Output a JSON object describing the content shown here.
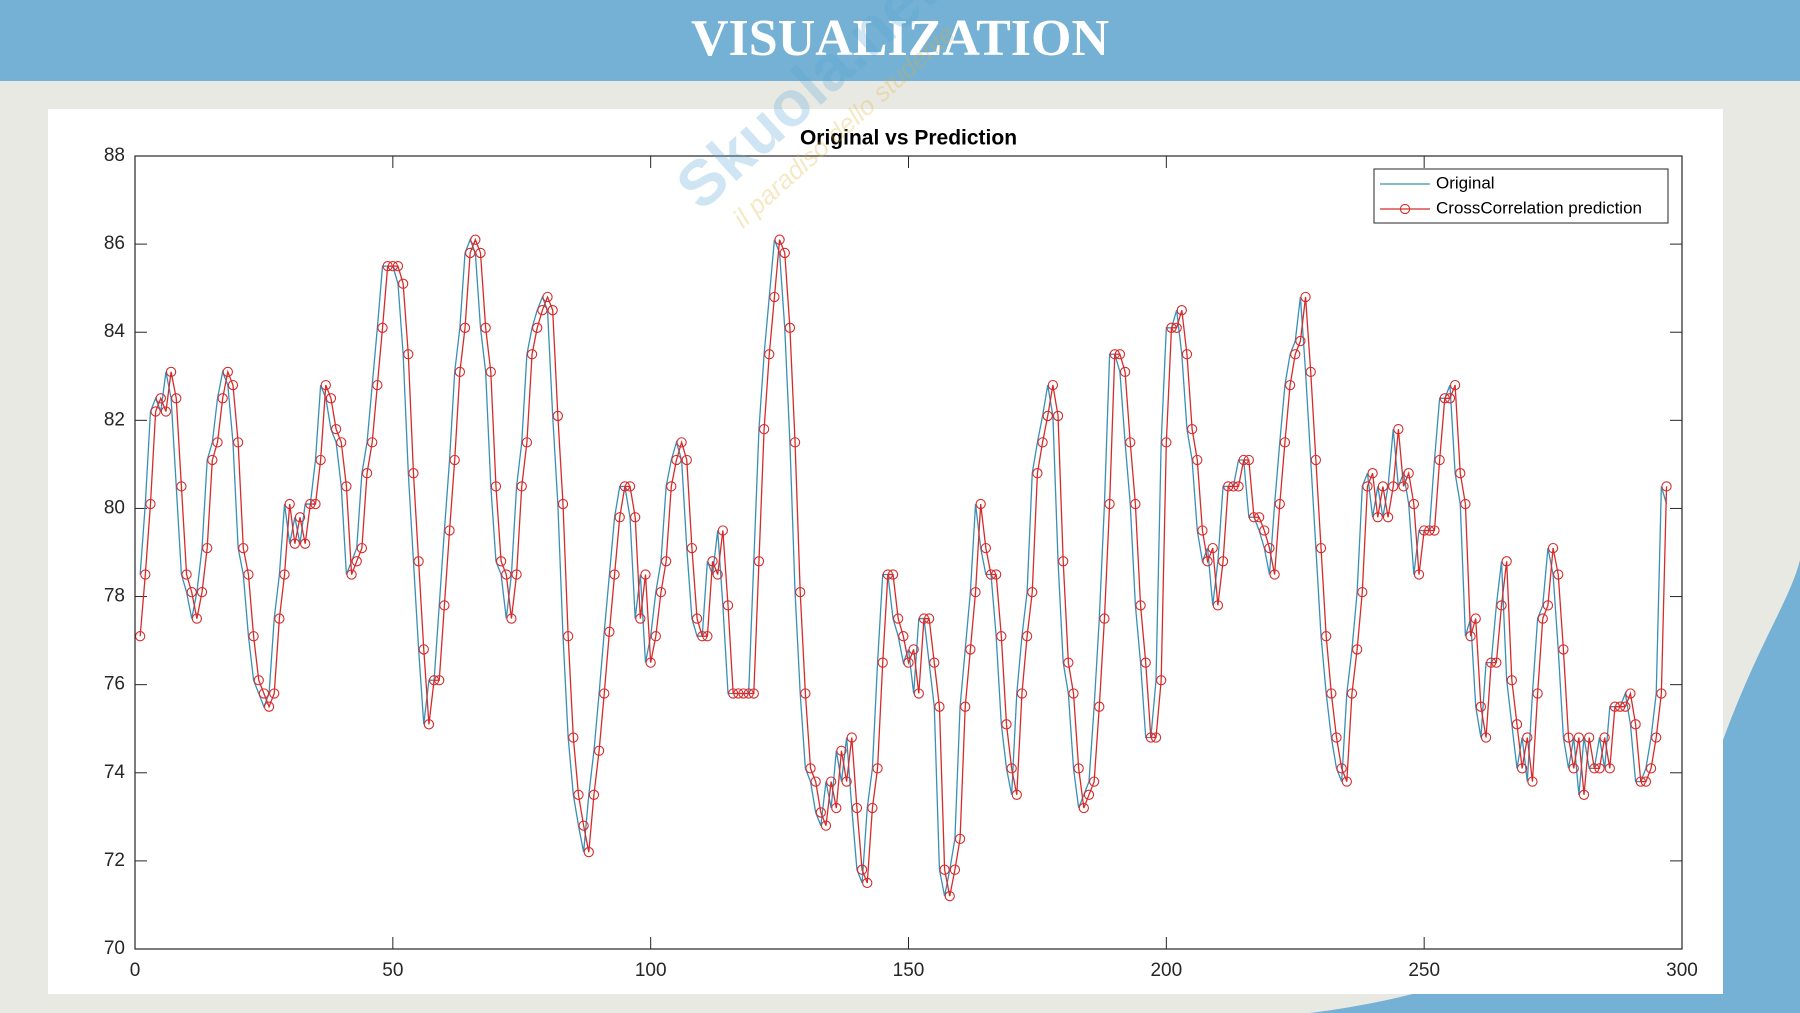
{
  "header": {
    "title": "VISUALIZATION"
  },
  "watermark": [
    "Skuola.net",
    "il paradiso dello studente"
  ],
  "chart_data": {
    "type": "line",
    "title": "Original vs Prediction",
    "x": [
      1,
      2,
      3,
      4,
      5,
      6,
      7,
      8,
      9,
      10,
      11,
      12,
      13,
      14,
      15,
      16,
      17,
      18,
      19,
      20,
      21,
      22,
      23,
      24,
      25,
      26,
      27,
      28,
      29,
      30,
      31,
      32,
      33,
      34,
      35,
      36,
      37,
      38,
      39,
      40,
      41,
      42,
      43,
      44,
      45,
      46,
      47,
      48,
      49,
      50,
      51,
      52,
      53,
      54,
      55,
      56,
      57,
      58,
      59,
      60,
      61,
      62,
      63,
      64,
      65,
      66,
      67,
      68,
      69,
      70,
      71,
      72,
      73,
      74,
      75,
      76,
      77,
      78,
      79,
      80,
      81,
      82,
      83,
      84,
      85,
      86,
      87,
      88,
      89,
      90,
      91,
      92,
      93,
      94,
      95,
      96,
      97,
      98,
      99,
      100,
      101,
      102,
      103,
      104,
      105,
      106,
      107,
      108,
      109,
      110,
      111,
      112,
      113,
      114,
      115,
      116,
      117,
      118,
      119,
      120,
      121,
      122,
      123,
      124,
      125,
      126,
      127,
      128,
      129,
      130,
      131,
      132,
      133,
      134,
      135,
      136,
      137,
      138,
      139,
      140,
      141,
      142,
      143,
      144,
      145,
      146,
      147,
      148,
      149,
      150,
      151,
      152,
      153,
      154,
      155,
      156,
      157,
      158,
      159,
      160,
      161,
      162,
      163,
      164,
      165,
      166,
      167,
      168,
      169,
      170,
      171,
      172,
      173,
      174,
      175,
      176,
      177,
      178,
      179,
      180,
      181,
      182,
      183,
      184,
      185,
      186,
      187,
      188,
      189,
      190,
      191,
      192,
      193,
      194,
      195,
      196,
      197,
      198,
      199,
      200,
      201,
      202,
      203,
      204,
      205,
      206,
      207,
      208,
      209,
      210,
      211,
      212,
      213,
      214,
      215,
      216,
      217,
      218,
      219,
      220,
      221,
      222,
      223,
      224,
      225,
      226,
      227,
      228,
      229,
      230,
      231,
      232,
      233,
      234,
      235,
      236,
      237,
      238,
      239,
      240,
      241,
      242,
      243,
      244,
      245,
      246,
      247,
      248,
      249,
      250,
      251,
      252,
      253,
      254,
      255,
      256,
      257,
      258,
      259,
      260,
      261,
      262,
      263,
      264,
      265,
      266,
      267,
      268,
      269,
      270,
      271,
      272,
      273,
      274,
      275,
      276,
      277,
      278,
      279,
      280,
      281,
      282,
      283,
      284,
      285,
      286,
      287,
      288,
      289,
      290,
      291,
      292,
      293,
      294,
      295,
      296,
      297
    ],
    "series": [
      {
        "name": "Original",
        "color": "#3a8fb5",
        "marker": false,
        "values": [
          78.5,
          80.1,
          82.2,
          82.5,
          82.2,
          83.1,
          82.5,
          80.5,
          78.5,
          78.1,
          77.5,
          78.1,
          79.1,
          81.1,
          81.5,
          82.5,
          83.1,
          82.8,
          81.5,
          79.1,
          78.5,
          77.1,
          76.1,
          75.8,
          75.5,
          75.8,
          77.5,
          78.5,
          80.1,
          79.2,
          79.8,
          79.2,
          80.1,
          80.1,
          81.1,
          82.8,
          82.5,
          81.8,
          81.5,
          80.5,
          78.5,
          78.8,
          79.1,
          80.8,
          81.5,
          82.8,
          84.1,
          85.5,
          85.5,
          85.5,
          85.1,
          83.5,
          80.8,
          78.8,
          76.8,
          75.1,
          76.1,
          76.1,
          77.8,
          79.5,
          81.1,
          83.1,
          84.1,
          85.8,
          86.1,
          85.8,
          84.1,
          83.1,
          80.5,
          78.8,
          78.5,
          77.5,
          78.5,
          80.5,
          81.5,
          83.5,
          84.1,
          84.5,
          84.8,
          84.5,
          82.1,
          80.1,
          77.1,
          74.8,
          73.5,
          72.8,
          72.2,
          73.5,
          74.5,
          75.8,
          77.2,
          78.5,
          79.8,
          80.5,
          80.5,
          79.8,
          77.5,
          78.5,
          76.5,
          77.1,
          78.1,
          78.8,
          80.5,
          81.1,
          81.5,
          81.1,
          79.1,
          77.5,
          77.1,
          77.1,
          78.8,
          78.5,
          79.5,
          77.8,
          75.8,
          75.8,
          75.8,
          75.8,
          75.8,
          78.8,
          81.8,
          83.5,
          84.8,
          86.1,
          85.8,
          84.1,
          81.5,
          78.1,
          75.8,
          74.1,
          73.8,
          73.1,
          72.8,
          73.8,
          73.2,
          74.5,
          73.8,
          74.8,
          73.2,
          71.8,
          71.5,
          73.2,
          74.1,
          76.5,
          78.5,
          78.5,
          77.5,
          77.1,
          76.5,
          76.8,
          75.8,
          77.5,
          77.5,
          76.5,
          75.5,
          71.8,
          71.2,
          71.8,
          72.5,
          75.5,
          76.8,
          78.1,
          80.1,
          79.1,
          78.5,
          78.5,
          77.1,
          75.1,
          74.1,
          73.5,
          75.8,
          77.1,
          78.1,
          80.8,
          81.5,
          82.1,
          82.8,
          82.1,
          78.8,
          76.5,
          75.8,
          74.1,
          73.2,
          73.5,
          73.8,
          75.5,
          77.5,
          80.1,
          83.5,
          83.5,
          83.1,
          81.5,
          80.1,
          77.8,
          76.5,
          74.8,
          74.8,
          76.1,
          81.5,
          84.1,
          84.1,
          84.5,
          83.5,
          81.8,
          81.1,
          79.5,
          78.8,
          79.1,
          77.8,
          78.8,
          80.5,
          80.5,
          80.5,
          81.1,
          81.1,
          79.8,
          79.8,
          79.5,
          79.1,
          78.5,
          80.1,
          81.5,
          82.8,
          83.5,
          83.8,
          84.8,
          83.1,
          81.1,
          79.1,
          77.1,
          75.8,
          74.8,
          74.1,
          73.8,
          75.8,
          76.8,
          78.1,
          80.5,
          80.8,
          79.8,
          80.5,
          79.8,
          80.5,
          81.8,
          80.5,
          80.8,
          80.1,
          78.5,
          79.5,
          79.5,
          79.5,
          81.1,
          82.5,
          82.5,
          82.8,
          80.8,
          80.1,
          77.1,
          77.5,
          75.5,
          74.8,
          76.5,
          76.5,
          77.8,
          78.8,
          76.1,
          75.1,
          74.1,
          74.8,
          73.8,
          75.8,
          77.5,
          77.8,
          79.1,
          78.5,
          76.8,
          74.8,
          74.1,
          74.8,
          73.5,
          74.8,
          74.1,
          74.1,
          74.8,
          74.1,
          75.5,
          75.5,
          75.5,
          75.8,
          75.1,
          73.8,
          73.8,
          74.1,
          74.8,
          75.8,
          80.5,
          80.1
        ]
      },
      {
        "name": "CrossCorrelation prediction",
        "color": "#d62b2b",
        "marker": true,
        "values": [
          77.1,
          78.5,
          80.1,
          82.2,
          82.5,
          82.2,
          83.1,
          82.5,
          80.5,
          78.5,
          78.1,
          77.5,
          78.1,
          79.1,
          81.1,
          81.5,
          82.5,
          83.1,
          82.8,
          81.5,
          79.1,
          78.5,
          77.1,
          76.1,
          75.8,
          75.5,
          75.8,
          77.5,
          78.5,
          80.1,
          79.2,
          79.8,
          79.2,
          80.1,
          80.1,
          81.1,
          82.8,
          82.5,
          81.8,
          81.5,
          80.5,
          78.5,
          78.8,
          79.1,
          80.8,
          81.5,
          82.8,
          84.1,
          85.5,
          85.5,
          85.5,
          85.1,
          83.5,
          80.8,
          78.8,
          76.8,
          75.1,
          76.1,
          76.1,
          77.8,
          79.5,
          81.1,
          83.1,
          84.1,
          85.8,
          86.1,
          85.8,
          84.1,
          83.1,
          80.5,
          78.8,
          78.5,
          77.5,
          78.5,
          80.5,
          81.5,
          83.5,
          84.1,
          84.5,
          84.8,
          84.5,
          82.1,
          80.1,
          77.1,
          74.8,
          73.5,
          72.8,
          72.2,
          73.5,
          74.5,
          75.8,
          77.2,
          78.5,
          79.8,
          80.5,
          80.5,
          79.8,
          77.5,
          78.5,
          76.5,
          77.1,
          78.1,
          78.8,
          80.5,
          81.1,
          81.5,
          81.1,
          79.1,
          77.5,
          77.1,
          77.1,
          78.8,
          78.5,
          79.5,
          77.8,
          75.8,
          75.8,
          75.8,
          75.8,
          75.8,
          78.8,
          81.8,
          83.5,
          84.8,
          86.1,
          85.8,
          84.1,
          81.5,
          78.1,
          75.8,
          74.1,
          73.8,
          73.1,
          72.8,
          73.8,
          73.2,
          74.5,
          73.8,
          74.8,
          73.2,
          71.8,
          71.5,
          73.2,
          74.1,
          76.5,
          78.5,
          78.5,
          77.5,
          77.1,
          76.5,
          76.8,
          75.8,
          77.5,
          77.5,
          76.5,
          75.5,
          71.8,
          71.2,
          71.8,
          72.5,
          75.5,
          76.8,
          78.1,
          80.1,
          79.1,
          78.5,
          78.5,
          77.1,
          75.1,
          74.1,
          73.5,
          75.8,
          77.1,
          78.1,
          80.8,
          81.5,
          82.1,
          82.8,
          82.1,
          78.8,
          76.5,
          75.8,
          74.1,
          73.2,
          73.5,
          73.8,
          75.5,
          77.5,
          80.1,
          83.5,
          83.5,
          83.1,
          81.5,
          80.1,
          77.8,
          76.5,
          74.8,
          74.8,
          76.1,
          81.5,
          84.1,
          84.1,
          84.5,
          83.5,
          81.8,
          81.1,
          79.5,
          78.8,
          79.1,
          77.8,
          78.8,
          80.5,
          80.5,
          80.5,
          81.1,
          81.1,
          79.8,
          79.8,
          79.5,
          79.1,
          78.5,
          80.1,
          81.5,
          82.8,
          83.5,
          83.8,
          84.8,
          83.1,
          81.1,
          79.1,
          77.1,
          75.8,
          74.8,
          74.1,
          73.8,
          75.8,
          76.8,
          78.1,
          80.5,
          80.8,
          79.8,
          80.5,
          79.8,
          80.5,
          81.8,
          80.5,
          80.8,
          80.1,
          78.5,
          79.5,
          79.5,
          79.5,
          81.1,
          82.5,
          82.5,
          82.8,
          80.8,
          80.1,
          77.1,
          77.5,
          75.5,
          74.8,
          76.5,
          76.5,
          77.8,
          78.8,
          76.1,
          75.1,
          74.1,
          74.8,
          73.8,
          75.8,
          77.5,
          77.8,
          79.1,
          78.5,
          76.8,
          74.8,
          74.1,
          74.8,
          73.5,
          74.8,
          74.1,
          74.1,
          74.8,
          74.1,
          75.5,
          75.5,
          75.5,
          75.8,
          75.1,
          73.8,
          73.8,
          74.1,
          74.8,
          75.8,
          80.5
        ]
      }
    ],
    "xlim": [
      0,
      300
    ],
    "xticks": [
      0,
      50,
      100,
      150,
      200,
      250,
      300
    ],
    "ylim": [
      70,
      88
    ],
    "yticks": [
      70,
      72,
      74,
      76,
      78,
      80,
      82,
      84,
      86,
      88
    ],
    "legend": "top-right",
    "grid": false
  }
}
